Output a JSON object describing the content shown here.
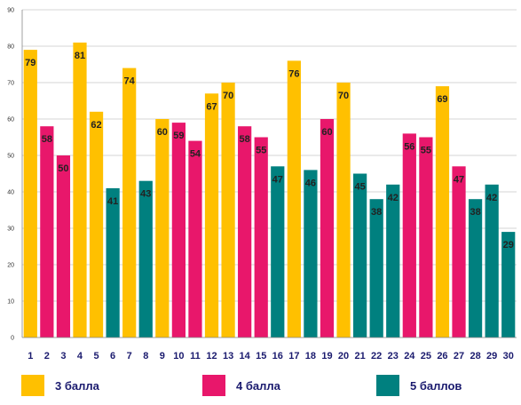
{
  "chart_data": {
    "type": "bar",
    "categories": [
      "1",
      "2",
      "3",
      "4",
      "5",
      "6",
      "7",
      "8",
      "9",
      "10",
      "11",
      "12",
      "13",
      "14",
      "15",
      "16",
      "17",
      "18",
      "19",
      "20",
      "21",
      "22",
      "23",
      "24",
      "25",
      "26",
      "27",
      "28",
      "29",
      "30"
    ],
    "values": [
      79,
      58,
      50,
      81,
      62,
      41,
      74,
      43,
      60,
      59,
      54,
      67,
      70,
      58,
      55,
      47,
      76,
      46,
      60,
      70,
      45,
      38,
      42,
      56,
      55,
      69,
      47,
      38,
      42,
      29
    ],
    "bar_series": [
      0,
      1,
      1,
      0,
      0,
      2,
      0,
      2,
      0,
      1,
      1,
      0,
      0,
      1,
      1,
      2,
      0,
      2,
      1,
      0,
      2,
      2,
      2,
      1,
      1,
      0,
      1,
      2,
      2,
      2
    ],
    "series": [
      {
        "name": "3 балла",
        "color": "#FFC000"
      },
      {
        "name": "4 балла",
        "color": "#E8176B"
      },
      {
        "name": "5 баллов",
        "color": "#00807F"
      }
    ],
    "ylim": [
      0,
      90
    ],
    "yticks": [
      "0",
      "10",
      "20",
      "30",
      "40",
      "50",
      "60",
      "70",
      "80",
      "90"
    ],
    "grid": true,
    "legend_position": "bottom",
    "title": "",
    "xlabel": "",
    "ylabel": ""
  }
}
